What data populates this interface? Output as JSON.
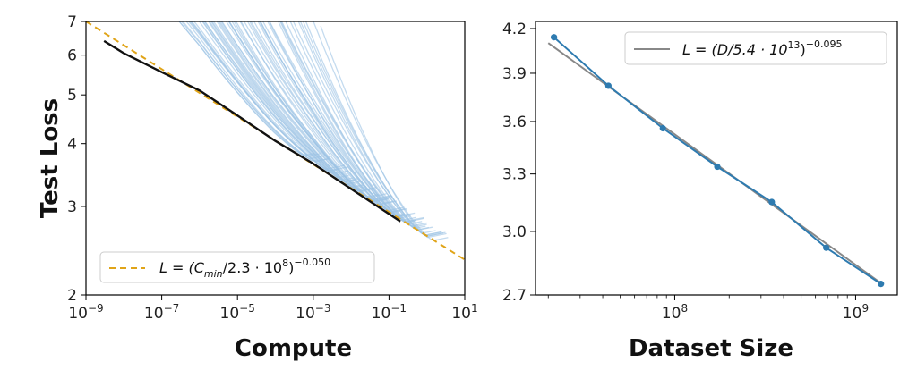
{
  "chart_data": [
    {
      "type": "line",
      "xlabel": "Compute",
      "ylabel": "Test Loss",
      "x_scale": "log",
      "y_scale": "log",
      "xlim": [
        1e-09,
        10
      ],
      "ylim": [
        2,
        7
      ],
      "x_ticks": [
        {
          "value": 1e-09,
          "base": "10",
          "exp": "−9"
        },
        {
          "value": 1e-07,
          "base": "10",
          "exp": "−7"
        },
        {
          "value": 1e-05,
          "base": "10",
          "exp": "−5"
        },
        {
          "value": 0.001,
          "base": "10",
          "exp": "−3"
        },
        {
          "value": 0.1,
          "base": "10",
          "exp": "−1"
        },
        {
          "value": 10,
          "base": "10",
          "exp": "1"
        }
      ],
      "y_ticks": [
        {
          "value": 2,
          "label": "2"
        },
        {
          "value": 3,
          "label": "3"
        },
        {
          "value": 4,
          "label": "4"
        },
        {
          "value": 5,
          "label": "5"
        },
        {
          "value": 6,
          "label": "6"
        },
        {
          "value": 7,
          "label": "7"
        }
      ],
      "grid": false,
      "legend_position": "bottom-left",
      "series": [
        {
          "name": "L = (C_min/2.3 · 10^8)^−0.050",
          "role": "power-law fit",
          "style": "dashed",
          "color": "#e0a418",
          "x": [
            1e-09,
            10
          ],
          "y": [
            7.0,
            2.35
          ]
        },
        {
          "role": "compute-efficient frontier",
          "color": "#111111",
          "x": [
            3e-09,
            1e-08,
            1e-07,
            1e-06,
            1e-05,
            0.0001,
            0.001,
            0.01,
            0.2
          ],
          "y": [
            6.4,
            6.05,
            5.55,
            5.1,
            4.55,
            4.05,
            3.65,
            3.25,
            2.8
          ]
        },
        {
          "role": "individual training curves",
          "color": "#9cc3e5",
          "curve_count": 60,
          "start_x_range": [
            1e-09,
            0.001
          ],
          "end_x_range": [
            0.001,
            3
          ]
        }
      ],
      "legend": {
        "formula_parts": {
          "lhs": "L = (C",
          "sub": "min",
          "mid": "/2.3 · 10",
          "sup1": "8",
          "close": ")",
          "sup2": "−0.050"
        }
      }
    },
    {
      "type": "line",
      "xlabel": "Dataset Size",
      "ylabel": "",
      "x_scale": "log",
      "y_scale": "log",
      "xlim": [
        17000000.0,
        1700000000.0
      ],
      "ylim": [
        2.7,
        4.25
      ],
      "x_ticks": [
        {
          "value": 100000000.0,
          "base": "10",
          "exp": "8"
        },
        {
          "value": 1000000000.0,
          "base": "10",
          "exp": "9"
        }
      ],
      "y_ticks": [
        {
          "value": 2.7,
          "label": "2.7"
        },
        {
          "value": 3.0,
          "label": "3.0"
        },
        {
          "value": 3.3,
          "label": "3.3"
        },
        {
          "value": 3.6,
          "label": "3.6"
        },
        {
          "value": 3.9,
          "label": "3.9"
        },
        {
          "value": 4.2,
          "label": "4.2"
        }
      ],
      "grid": false,
      "legend_position": "top-right",
      "series": [
        {
          "name": "L = (D/5.4 · 10^13)^−0.095",
          "role": "power-law fit",
          "color": "#888888",
          "x": [
            20000000.0,
            1400000000.0
          ],
          "y": [
            4.1,
            2.75
          ]
        },
        {
          "role": "data",
          "color": "#2e7bb0",
          "x": [
            21500000.0,
            43000000.0,
            86000000.0,
            172000000.0,
            344000000.0,
            688000000.0,
            1380000000.0
          ],
          "y": [
            4.14,
            3.82,
            3.56,
            3.34,
            3.15,
            2.92,
            2.75
          ]
        }
      ],
      "legend": {
        "formula_parts": {
          "lhs": "L = (D/5.4 · 10",
          "sup1": "13",
          "close": ")",
          "sup2": "−0.095"
        }
      }
    }
  ]
}
